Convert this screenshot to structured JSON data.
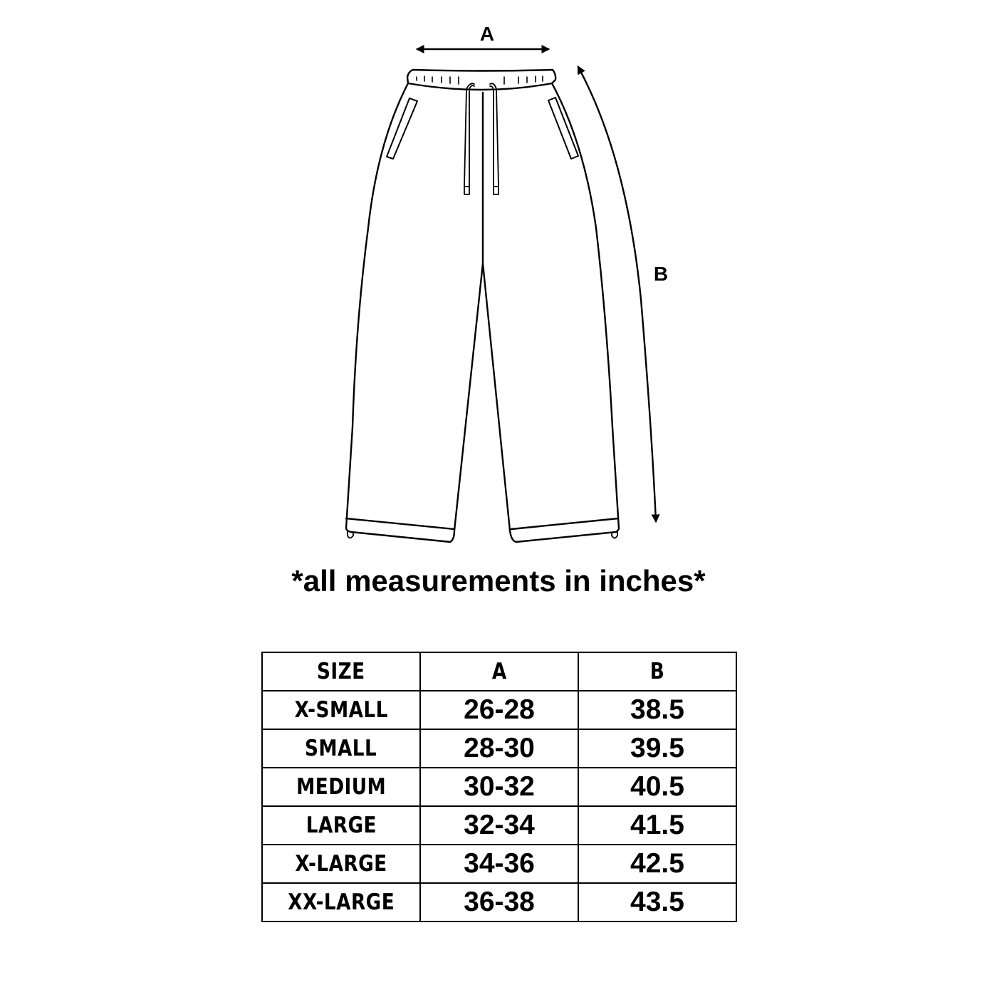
{
  "diagram": {
    "label_a": "A",
    "label_b": "B"
  },
  "note": "*all measurements in inches*",
  "table": {
    "headers": [
      "SIZE",
      "A",
      "B"
    ],
    "rows": [
      {
        "size": "X-SMALL",
        "a": "26-28",
        "b": "38.5"
      },
      {
        "size": "SMALL",
        "a": "28-30",
        "b": "39.5"
      },
      {
        "size": "MEDIUM",
        "a": "30-32",
        "b": "40.5"
      },
      {
        "size": "LARGE",
        "a": "32-34",
        "b": "41.5"
      },
      {
        "size": "X-LARGE",
        "a": "34-36",
        "b": "42.5"
      },
      {
        "size": "XX-LARGE",
        "a": "36-38",
        "b": "43.5"
      }
    ]
  }
}
